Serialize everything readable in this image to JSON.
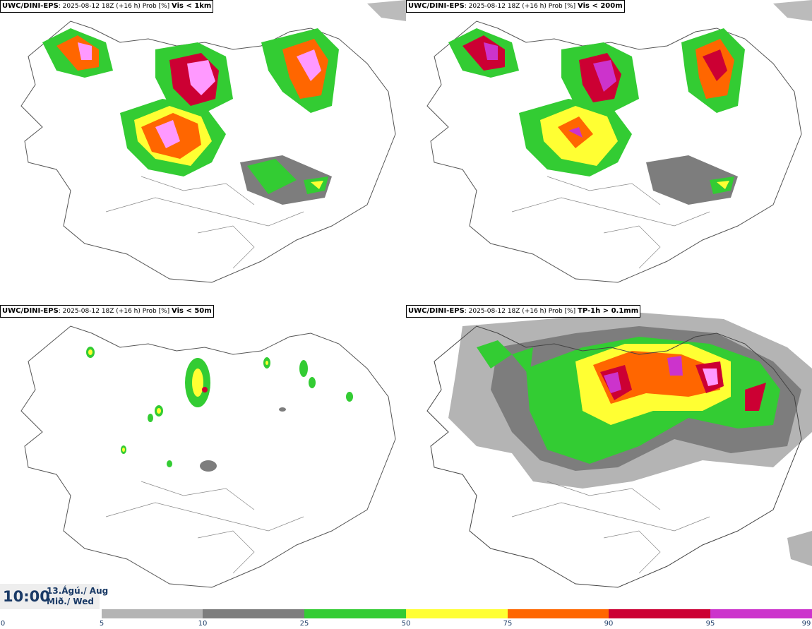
{
  "panels": [
    {
      "model": "UWC/DINI-EPS",
      "run": ": 2025-08-12 18Z (+16 h) Prob [%] ",
      "variable": "Vis < 1km"
    },
    {
      "model": "UWC/DINI-EPS",
      "run": ": 2025-08-12 18Z (+16 h) Prob [%] ",
      "variable": "Vis < 200m"
    },
    {
      "model": "UWC/DINI-EPS",
      "run": ": 2025-08-12 18Z (+16 h) Prob [%] ",
      "variable": "Vis < 50m"
    },
    {
      "model": "UWC/DINI-EPS",
      "run": ": 2025-08-12 18Z (+16 h) Prob [%] ",
      "variable": "TP-1h > 0.1mm"
    }
  ],
  "valid_time": {
    "time": "10:00",
    "date_line1": "13.Ágú./ Aug",
    "date_line2": "Mið./ Wed"
  },
  "colorbar": {
    "ticks": [
      "0",
      "5",
      "10",
      "25",
      "50",
      "75",
      "90",
      "95",
      "99"
    ],
    "colors": [
      "#ffffff",
      "#b4b4b4",
      "#7d7d7d",
      "#33cc33",
      "#ffff33",
      "#ff6600",
      "#cc0033",
      "#cc33cc",
      "#ff99ff"
    ]
  }
}
